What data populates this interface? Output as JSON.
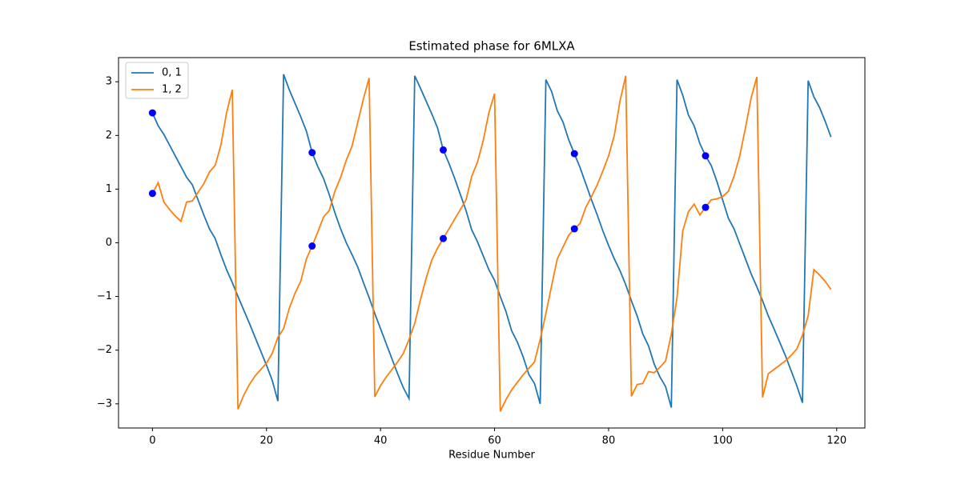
{
  "chart_data": {
    "type": "line",
    "title": "Estimated phase for 6MLXA",
    "x_label": "Residue Number",
    "x": [
      0,
      1,
      2,
      3,
      4,
      5,
      6,
      7,
      8,
      9,
      10,
      11,
      12,
      13,
      14,
      15,
      16,
      17,
      18,
      19,
      20,
      21,
      22,
      23,
      24,
      25,
      26,
      27,
      28,
      29,
      30,
      31,
      32,
      33,
      34,
      35,
      36,
      37,
      38,
      39,
      40,
      41,
      42,
      43,
      44,
      45,
      46,
      47,
      48,
      49,
      50,
      51,
      52,
      53,
      54,
      55,
      56,
      57,
      58,
      59,
      60,
      61,
      62,
      63,
      64,
      65,
      66,
      67,
      68,
      69,
      70,
      71,
      72,
      73,
      74,
      75,
      76,
      77,
      78,
      79,
      80,
      81,
      82,
      83,
      84,
      85,
      86,
      87,
      88,
      89,
      90,
      91,
      92,
      93,
      94,
      95,
      96,
      97,
      98,
      99,
      100,
      101,
      102,
      103,
      104,
      105,
      106,
      107,
      108,
      109,
      110,
      111,
      112,
      113,
      114,
      115,
      116,
      117,
      118,
      119
    ],
    "series": [
      {
        "name": "0, 1",
        "color": "#1f77b4",
        "values": [
          2.42,
          2.18,
          2.02,
          1.82,
          1.62,
          1.42,
          1.22,
          1.08,
          0.8,
          0.52,
          0.26,
          0.08,
          -0.22,
          -0.5,
          -0.74,
          -1.0,
          -1.25,
          -1.5,
          -1.76,
          -2.02,
          -2.28,
          -2.56,
          -2.95,
          3.14,
          2.85,
          2.6,
          2.35,
          2.08,
          1.68,
          1.42,
          1.2,
          0.9,
          0.56,
          0.26,
          0.0,
          -0.22,
          -0.45,
          -0.74,
          -1.02,
          -1.32,
          -1.6,
          -1.88,
          -2.16,
          -2.44,
          -2.7,
          -2.9,
          3.11,
          2.88,
          2.64,
          2.4,
          2.14,
          1.73,
          1.48,
          1.2,
          0.9,
          0.6,
          0.24,
          0.02,
          -0.24,
          -0.5,
          -0.7,
          -1.0,
          -1.28,
          -1.64,
          -1.85,
          -2.12,
          -2.45,
          -2.62,
          -3.0,
          3.04,
          2.82,
          2.46,
          2.25,
          1.92,
          1.66,
          1.4,
          1.1,
          0.8,
          0.52,
          0.22,
          -0.05,
          -0.3,
          -0.52,
          -0.78,
          -1.08,
          -1.36,
          -1.7,
          -1.92,
          -2.26,
          -2.5,
          -2.68,
          -3.07,
          3.04,
          2.75,
          2.38,
          2.18,
          1.85,
          1.62,
          1.44,
          1.14,
          0.8,
          0.46,
          0.26,
          -0.02,
          -0.3,
          -0.58,
          -0.82,
          -1.08,
          -1.36,
          -1.6,
          -1.85,
          -2.1,
          -2.38,
          -2.66,
          -2.98,
          3.02,
          2.72,
          2.52,
          2.26,
          1.97
        ]
      },
      {
        "name": "1, 2",
        "color": "#ff7f0e",
        "values": [
          0.92,
          1.12,
          0.76,
          0.62,
          0.5,
          0.4,
          0.76,
          0.78,
          0.94,
          1.1,
          1.32,
          1.44,
          1.82,
          2.42,
          2.85,
          -3.1,
          -2.84,
          -2.64,
          -2.48,
          -2.36,
          -2.24,
          -2.06,
          -1.76,
          -1.6,
          -1.22,
          -0.94,
          -0.72,
          -0.3,
          -0.06,
          0.2,
          0.48,
          0.6,
          0.96,
          1.22,
          1.54,
          1.8,
          2.24,
          2.68,
          3.07,
          -2.87,
          -2.66,
          -2.5,
          -2.36,
          -2.22,
          -2.06,
          -1.8,
          -1.5,
          -1.06,
          -0.66,
          -0.32,
          -0.1,
          0.08,
          0.26,
          0.44,
          0.62,
          0.8,
          1.24,
          1.5,
          1.9,
          2.42,
          2.78,
          -3.14,
          -2.92,
          -2.74,
          -2.6,
          -2.46,
          -2.34,
          -2.22,
          -1.8,
          -1.32,
          -0.8,
          -0.3,
          -0.08,
          0.14,
          0.26,
          0.36,
          0.66,
          0.86,
          1.08,
          1.34,
          1.62,
          2.0,
          2.64,
          3.11,
          -2.86,
          -2.64,
          -2.62,
          -2.4,
          -2.42,
          -2.32,
          -2.2,
          -1.7,
          -1.02,
          0.22,
          0.58,
          0.72,
          0.52,
          0.66,
          0.8,
          0.82,
          0.86,
          0.96,
          1.24,
          1.62,
          2.14,
          2.7,
          3.09,
          -2.88,
          -2.44,
          -2.36,
          -2.28,
          -2.2,
          -2.1,
          -1.98,
          -1.72,
          -1.36,
          -0.5,
          -0.6,
          -0.72,
          -0.87
        ]
      }
    ],
    "points": {
      "color": "#0000ff",
      "x": [
        0,
        0,
        28,
        28,
        51,
        51,
        74,
        74,
        97,
        97
      ],
      "y": [
        2.42,
        0.92,
        1.68,
        -0.06,
        1.73,
        0.08,
        1.66,
        0.26,
        1.62,
        0.66
      ]
    },
    "xlim": [
      -5.95,
      124.95
    ],
    "ylim": [
      -3.45,
      3.45
    ],
    "xticks": [
      0,
      20,
      40,
      60,
      80,
      100,
      120
    ],
    "yticks": [
      {
        "value": -3,
        "label": "−3"
      },
      {
        "value": -2,
        "label": "−2"
      },
      {
        "value": -1,
        "label": "−1"
      },
      0,
      1,
      2,
      3
    ],
    "legend": "upper left"
  }
}
